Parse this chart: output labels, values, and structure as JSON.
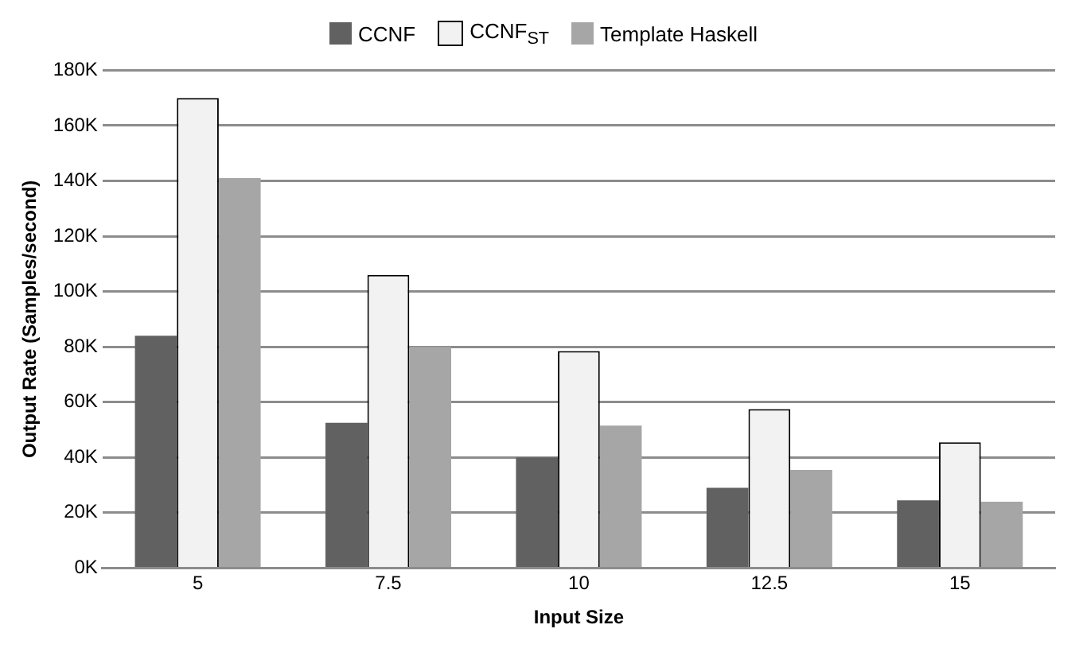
{
  "chart_data": {
    "type": "bar",
    "xlabel": "Input Size",
    "ylabel": "Output Rate (Samples/second)",
    "categories": [
      "5",
      "7.5",
      "10",
      "12.5",
      "15"
    ],
    "series": [
      {
        "name": "CCNF",
        "color": "#616161",
        "values": [
          84000,
          52500,
          40000,
          29000,
          24500
        ]
      },
      {
        "name": "CCNF$_{ST}$",
        "color": "#f2f2f2",
        "values": [
          170000,
          106000,
          78500,
          57500,
          45500
        ]
      },
      {
        "name": "Template Haskell",
        "color": "#a6a6a6",
        "values": [
          141000,
          80000,
          51500,
          35500,
          24000
        ]
      }
    ],
    "ylim": [
      0,
      180000
    ],
    "yticks": [
      {
        "value": 0,
        "label": "0K"
      },
      {
        "value": 20000,
        "label": "20K"
      },
      {
        "value": 40000,
        "label": "40K"
      },
      {
        "value": 60000,
        "label": "60K"
      },
      {
        "value": 80000,
        "label": "80K"
      },
      {
        "value": 100000,
        "label": "100K"
      },
      {
        "value": 120000,
        "label": "120K"
      },
      {
        "value": 140000,
        "label": "140K"
      },
      {
        "value": 160000,
        "label": "160K"
      },
      {
        "value": 180000,
        "label": "180K"
      }
    ],
    "grid": "y",
    "legend": "top"
  }
}
